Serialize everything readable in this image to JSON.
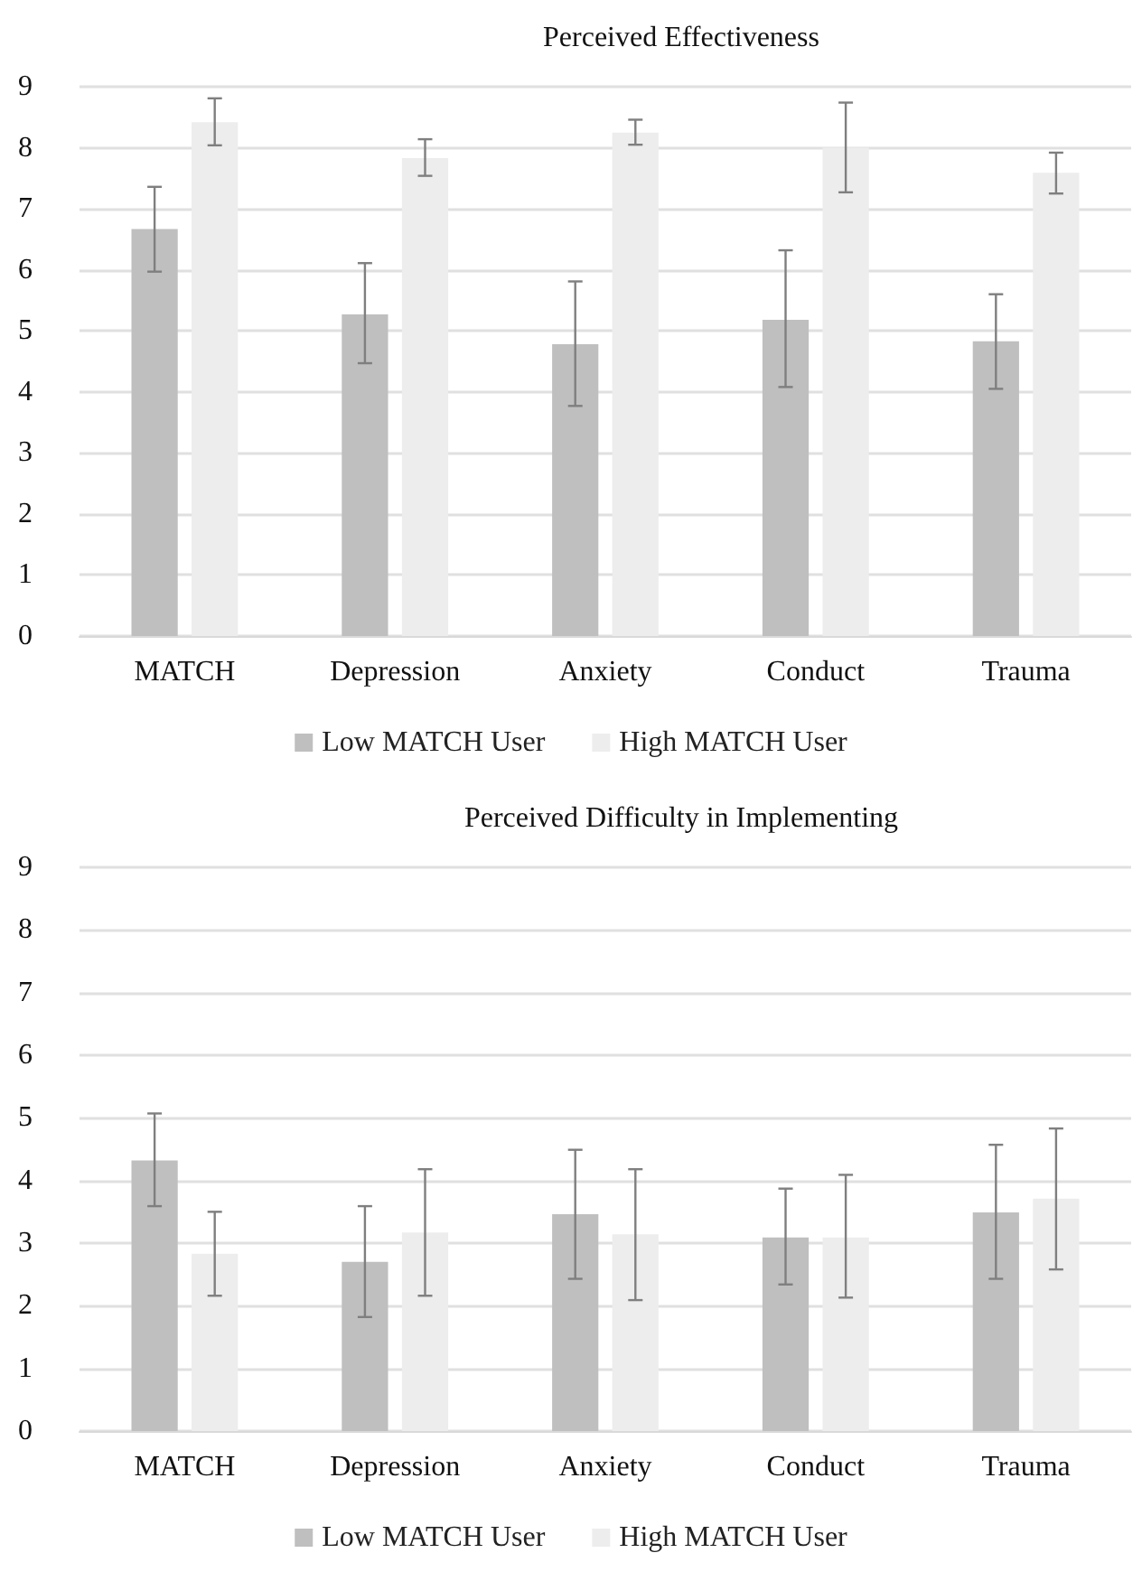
{
  "chart_data": [
    {
      "type": "bar",
      "title": "Perceived Effectiveness",
      "categories": [
        "MATCH",
        "Depression",
        "Anxiety",
        "Conduct",
        "Trauma"
      ],
      "series": [
        {
          "name": "Low MATCH User",
          "color": "#bfbfbf",
          "values": [
            6.67,
            5.27,
            4.78,
            5.18,
            4.83
          ],
          "errors": [
            [
              5.97,
              7.36
            ],
            [
              4.47,
              6.11
            ],
            [
              3.77,
              5.81
            ],
            [
              4.08,
              6.32
            ],
            [
              4.05,
              5.6
            ]
          ]
        },
        {
          "name": "High MATCH User",
          "color": "#ededed",
          "values": [
            8.42,
            7.83,
            8.25,
            8.0,
            7.59
          ],
          "errors": [
            [
              8.04,
              8.81
            ],
            [
              7.54,
              8.14
            ],
            [
              8.05,
              8.46
            ],
            [
              7.27,
              8.74
            ],
            [
              7.25,
              7.92
            ]
          ]
        }
      ],
      "ylim": [
        0,
        9
      ],
      "yticks": [
        0,
        1,
        2,
        3,
        4,
        5,
        6,
        7,
        8,
        9
      ],
      "grid": "y",
      "legend": "bottom"
    },
    {
      "type": "bar",
      "title": "Perceived Difficulty in Implementing",
      "categories": [
        "MATCH",
        "Depression",
        "Anxiety",
        "Conduct",
        "Trauma"
      ],
      "series": [
        {
          "name": "Low MATCH User",
          "color": "#bfbfbf",
          "values": [
            4.32,
            2.7,
            3.46,
            3.09,
            3.49
          ],
          "errors": [
            [
              3.59,
              5.07
            ],
            [
              1.82,
              3.59
            ],
            [
              2.43,
              4.49
            ],
            [
              2.34,
              3.87
            ],
            [
              2.43,
              4.57
            ]
          ]
        },
        {
          "name": "High MATCH User",
          "color": "#ededed",
          "values": [
            2.83,
            3.17,
            3.14,
            3.09,
            3.71
          ],
          "errors": [
            [
              2.16,
              3.5
            ],
            [
              2.16,
              4.18
            ],
            [
              2.09,
              4.18
            ],
            [
              2.13,
              4.09
            ],
            [
              2.58,
              4.83
            ]
          ]
        }
      ],
      "ylim": [
        0,
        9
      ],
      "yticks": [
        0,
        1,
        2,
        3,
        4,
        5,
        6,
        7,
        8,
        9
      ],
      "grid": "y",
      "legend": "bottom"
    }
  ]
}
